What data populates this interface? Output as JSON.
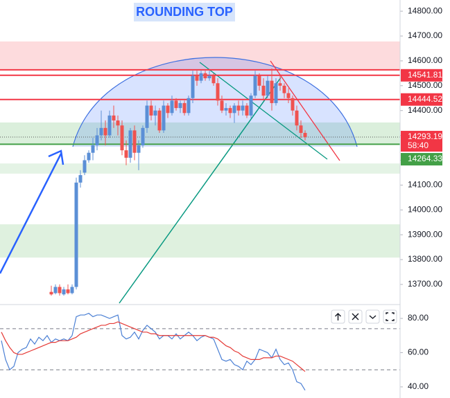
{
  "chart_data": [
    {
      "type": "candlestick",
      "title": "ROUNDING TOP",
      "open": [
        13670,
        13665,
        13690,
        13660,
        13680,
        13665,
        13690,
        14110,
        14150,
        14200,
        14230,
        14260,
        14300,
        14330,
        14300,
        14380,
        14360,
        14340,
        14240,
        14210,
        14320,
        14230,
        14260,
        14330,
        14420,
        14380,
        14400,
        14320,
        14420,
        14390,
        14440,
        14410,
        14430,
        14390,
        14450,
        14540,
        14520,
        14550,
        14530,
        14540,
        14510,
        14440,
        14400,
        14410,
        14390,
        14420,
        14400,
        14420,
        14380,
        14460,
        14540,
        14500,
        14460,
        14520,
        14430,
        14510,
        14500,
        14470,
        14450,
        14400,
        14340,
        14310
      ],
      "high": [
        13695,
        13700,
        13700,
        13690,
        13700,
        13700,
        14130,
        14160,
        14220,
        14240,
        14290,
        14330,
        14400,
        14360,
        14400,
        14420,
        14380,
        14360,
        14280,
        14330,
        14340,
        14280,
        14340,
        14440,
        14440,
        14420,
        14410,
        14440,
        14430,
        14460,
        14450,
        14440,
        14440,
        14460,
        14560,
        14560,
        14560,
        14560,
        14560,
        14550,
        14530,
        14460,
        14430,
        14420,
        14430,
        14440,
        14440,
        14430,
        14470,
        14560,
        14550,
        14530,
        14540,
        14570,
        14530,
        14540,
        14510,
        14490,
        14460,
        14420,
        14360,
        14320
      ],
      "low": [
        13655,
        13660,
        13655,
        13655,
        13660,
        13660,
        13680,
        14090,
        14140,
        14190,
        14200,
        14240,
        14280,
        14260,
        14290,
        14330,
        14300,
        14220,
        14180,
        14190,
        14200,
        14160,
        14250,
        14310,
        14360,
        14340,
        14310,
        14310,
        14370,
        14380,
        14400,
        14390,
        14380,
        14380,
        14430,
        14500,
        14510,
        14520,
        14520,
        14500,
        14420,
        14390,
        14380,
        14370,
        14350,
        14380,
        14380,
        14370,
        14370,
        14450,
        14480,
        14440,
        14450,
        14400,
        14420,
        14480,
        14450,
        14430,
        14380,
        14320,
        14290,
        14280
      ],
      "close": [
        13660,
        13690,
        13665,
        13680,
        13665,
        13690,
        14110,
        14140,
        14200,
        14230,
        14260,
        14300,
        14330,
        14300,
        14380,
        14360,
        14340,
        14240,
        14210,
        14320,
        14230,
        14260,
        14330,
        14420,
        14380,
        14400,
        14320,
        14420,
        14390,
        14440,
        14410,
        14430,
        14390,
        14450,
        14540,
        14520,
        14550,
        14530,
        14540,
        14510,
        14440,
        14400,
        14410,
        14390,
        14420,
        14400,
        14420,
        14380,
        14460,
        14540,
        14500,
        14460,
        14520,
        14430,
        14510,
        14500,
        14470,
        14450,
        14400,
        14340,
        14310,
        14293.19
      ],
      "up_color": "#5b8fd6",
      "down_color": "#ef5350",
      "ylim": [
        13619,
        14845
      ],
      "yticks": [
        {
          "value": 13700,
          "label": "13700.00"
        },
        {
          "value": 13800,
          "label": "13800.00"
        },
        {
          "value": 13900,
          "label": "13900.00"
        },
        {
          "value": 14000,
          "label": "14000.00"
        },
        {
          "value": 14100,
          "label": "14100.00"
        },
        {
          "value": 14200,
          "label": "14200.00"
        },
        {
          "value": 14300,
          "label": "14300.00"
        },
        {
          "value": 14400,
          "label": "14400.00"
        },
        {
          "value": 14500,
          "label": "14500.00"
        },
        {
          "value": 14600,
          "label": "14600.00"
        },
        {
          "value": 14700,
          "label": "14700.00"
        },
        {
          "value": 14800,
          "label": "14800.00"
        }
      ],
      "zones": [
        {
          "from": 14678,
          "to": 14564,
          "color": "rgba(242,54,69,0.18)"
        },
        {
          "from": 14352,
          "to": 14262,
          "color": "rgba(76,175,80,0.2)"
        },
        {
          "from": 14187,
          "to": 14146,
          "color": "rgba(76,175,80,0.15)"
        },
        {
          "from": 13942,
          "to": 13808,
          "color": "rgba(76,175,80,0.18)"
        }
      ],
      "price_lines": [
        {
          "value": 14564,
          "color": "#f23645"
        },
        {
          "value": 14541.81,
          "color": "#f23645"
        },
        {
          "value": 14444.52,
          "color": "#f23645"
        },
        {
          "value": 14264.33,
          "color": "#43a047"
        }
      ],
      "price_labels": [
        {
          "value": 14541.81,
          "color": "#f23645"
        },
        {
          "value": 14444.52,
          "color": "#f23645"
        },
        {
          "value": 14264.33,
          "color": "#43a047"
        }
      ],
      "last_price": 14293.19,
      "last_color": "#f23645",
      "countdown": "58:40"
    },
    {
      "type": "line",
      "series": [
        {
          "color": "#4a7fd4",
          "values": [
            67,
            56,
            50,
            52,
            60,
            62,
            63,
            68,
            65,
            69,
            67,
            70,
            66,
            68,
            67,
            68,
            67,
            70,
            81,
            82,
            82,
            83,
            81,
            82,
            82,
            81,
            80,
            81,
            82,
            70,
            68,
            69,
            72,
            68,
            73,
            76,
            74,
            72,
            68,
            70,
            70,
            68,
            71,
            68,
            70,
            72,
            70,
            67,
            69,
            70,
            69,
            68,
            62,
            56,
            55,
            56,
            53,
            52,
            50,
            55,
            53,
            56,
            62,
            61,
            60,
            57,
            62,
            56,
            53,
            54,
            50,
            43,
            42,
            38
          ]
        },
        {
          "color": "#e53935",
          "values": [
            72,
            67,
            63,
            60,
            59,
            59,
            60,
            61,
            62,
            63,
            64,
            65,
            66,
            66,
            67,
            67,
            67,
            68,
            69,
            71,
            72,
            73,
            74,
            75,
            76,
            76,
            77,
            77,
            78,
            77,
            76,
            75,
            74,
            73,
            72,
            72,
            71,
            71,
            70,
            70,
            70,
            70,
            70,
            70,
            70,
            70,
            70,
            70,
            70,
            70,
            69,
            69,
            68,
            66,
            64,
            63,
            61,
            60,
            58,
            57,
            56,
            56,
            56,
            57,
            57,
            57,
            58,
            58,
            57,
            56,
            55,
            53,
            51,
            49
          ]
        }
      ],
      "ylim": [
        33.5,
        88.1
      ],
      "yticks": [
        {
          "value": 40,
          "label": "40.00"
        },
        {
          "value": 60,
          "label": "60.00"
        },
        {
          "value": 80,
          "label": "80.00"
        }
      ],
      "hlines": [
        74,
        50
      ]
    }
  ]
}
